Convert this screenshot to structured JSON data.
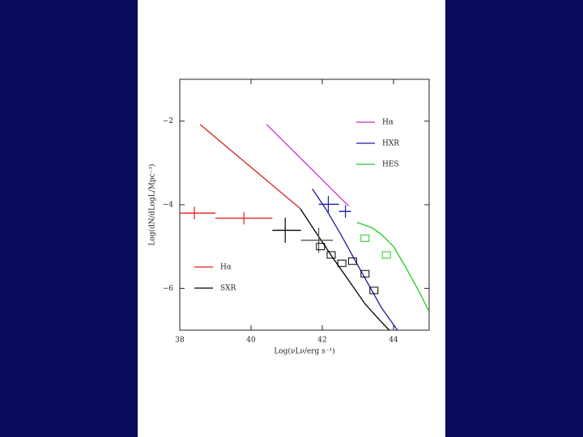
{
  "chart_data": {
    "type": "line",
    "xlabel": "Log(νLν/erg s⁻¹)",
    "ylabel": "Log(dN/dLogL/Mpc⁻³)",
    "xlim": [
      38,
      45
    ],
    "ylim": [
      -7,
      -1
    ],
    "xticks": [
      38,
      40,
      42,
      44
    ],
    "yticks": [
      {
        "value": -2,
        "label": "−2"
      },
      {
        "value": -4,
        "label": "−4"
      },
      {
        "value": -6,
        "label": "−6"
      }
    ],
    "series": [
      {
        "name": "Hα",
        "color": "#cc33cc",
        "legend": "upper right",
        "x": [
          40.44,
          42.74
        ],
        "values": [
          -2.08,
          -4.03
        ]
      },
      {
        "name": "HXR",
        "color": "#1a1aa0",
        "legend": "upper right",
        "x": [
          41.72,
          42.1,
          42.52,
          43.09,
          43.66,
          44.11
        ],
        "values": [
          -3.62,
          -4.1,
          -4.71,
          -5.59,
          -6.46,
          -7.0
        ]
      },
      {
        "name": "HES",
        "color": "#22cc22",
        "legend": "upper right",
        "x": [
          42.97,
          43.4,
          43.66,
          44.0,
          44.34,
          44.7,
          45.0
        ],
        "values": [
          -4.42,
          -4.55,
          -4.71,
          -5.0,
          -5.49,
          -6.05,
          -6.56
        ]
      },
      {
        "name": "Hα",
        "color": "#dd2222",
        "legend": "lower left",
        "x": [
          38.57,
          41.38
        ],
        "values": [
          -2.08,
          -4.09
        ]
      },
      {
        "name": "SXR",
        "color": "#000000",
        "legend": "lower left",
        "x": [
          41.38,
          41.85,
          42.29,
          42.75,
          43.2,
          43.6,
          43.88
        ],
        "values": [
          -4.09,
          -4.7,
          -5.26,
          -5.82,
          -6.37,
          -6.75,
          -7.0
        ]
      }
    ],
    "crosses": [
      {
        "color": "#dd2222",
        "x": 38.41,
        "y": -4.2,
        "xlo": 38.0,
        "xhi": 39.0,
        "yerr": 0.15
      },
      {
        "color": "#dd2222",
        "x": 39.8,
        "y": -4.32,
        "xlo": 39.0,
        "xhi": 40.6,
        "yerr": 0.15
      },
      {
        "color": "#000000",
        "x": 40.96,
        "y": -4.61,
        "xlo": 40.6,
        "xhi": 41.4,
        "yerr": 0.3
      },
      {
        "color": "#555555",
        "x": 41.9,
        "y": -4.85,
        "xlo": 41.4,
        "xhi": 42.3,
        "yerr": 0.3
      },
      {
        "color": "#1a1aa0",
        "x": 42.17,
        "y": -3.99,
        "xlo": 41.9,
        "xhi": 42.47,
        "yerr": 0.2
      },
      {
        "color": "#1a1aa0",
        "x": 42.65,
        "y": -4.16,
        "xlo": 42.47,
        "xhi": 42.8,
        "yerr": 0.15
      }
    ],
    "boxes": [
      {
        "color": "#000000",
        "x": 41.95,
        "y": -5.0
      },
      {
        "color": "#000000",
        "x": 42.25,
        "y": -5.2
      },
      {
        "color": "#000000",
        "x": 42.55,
        "y": -5.4
      },
      {
        "color": "#000000",
        "x": 42.85,
        "y": -5.35
      },
      {
        "color": "#000000",
        "x": 43.2,
        "y": -5.65
      },
      {
        "color": "#000000",
        "x": 43.45,
        "y": -6.05
      },
      {
        "color": "#22cc22",
        "x": 43.2,
        "y": -4.8
      },
      {
        "color": "#22cc22",
        "x": 43.8,
        "y": -5.2
      }
    ]
  }
}
